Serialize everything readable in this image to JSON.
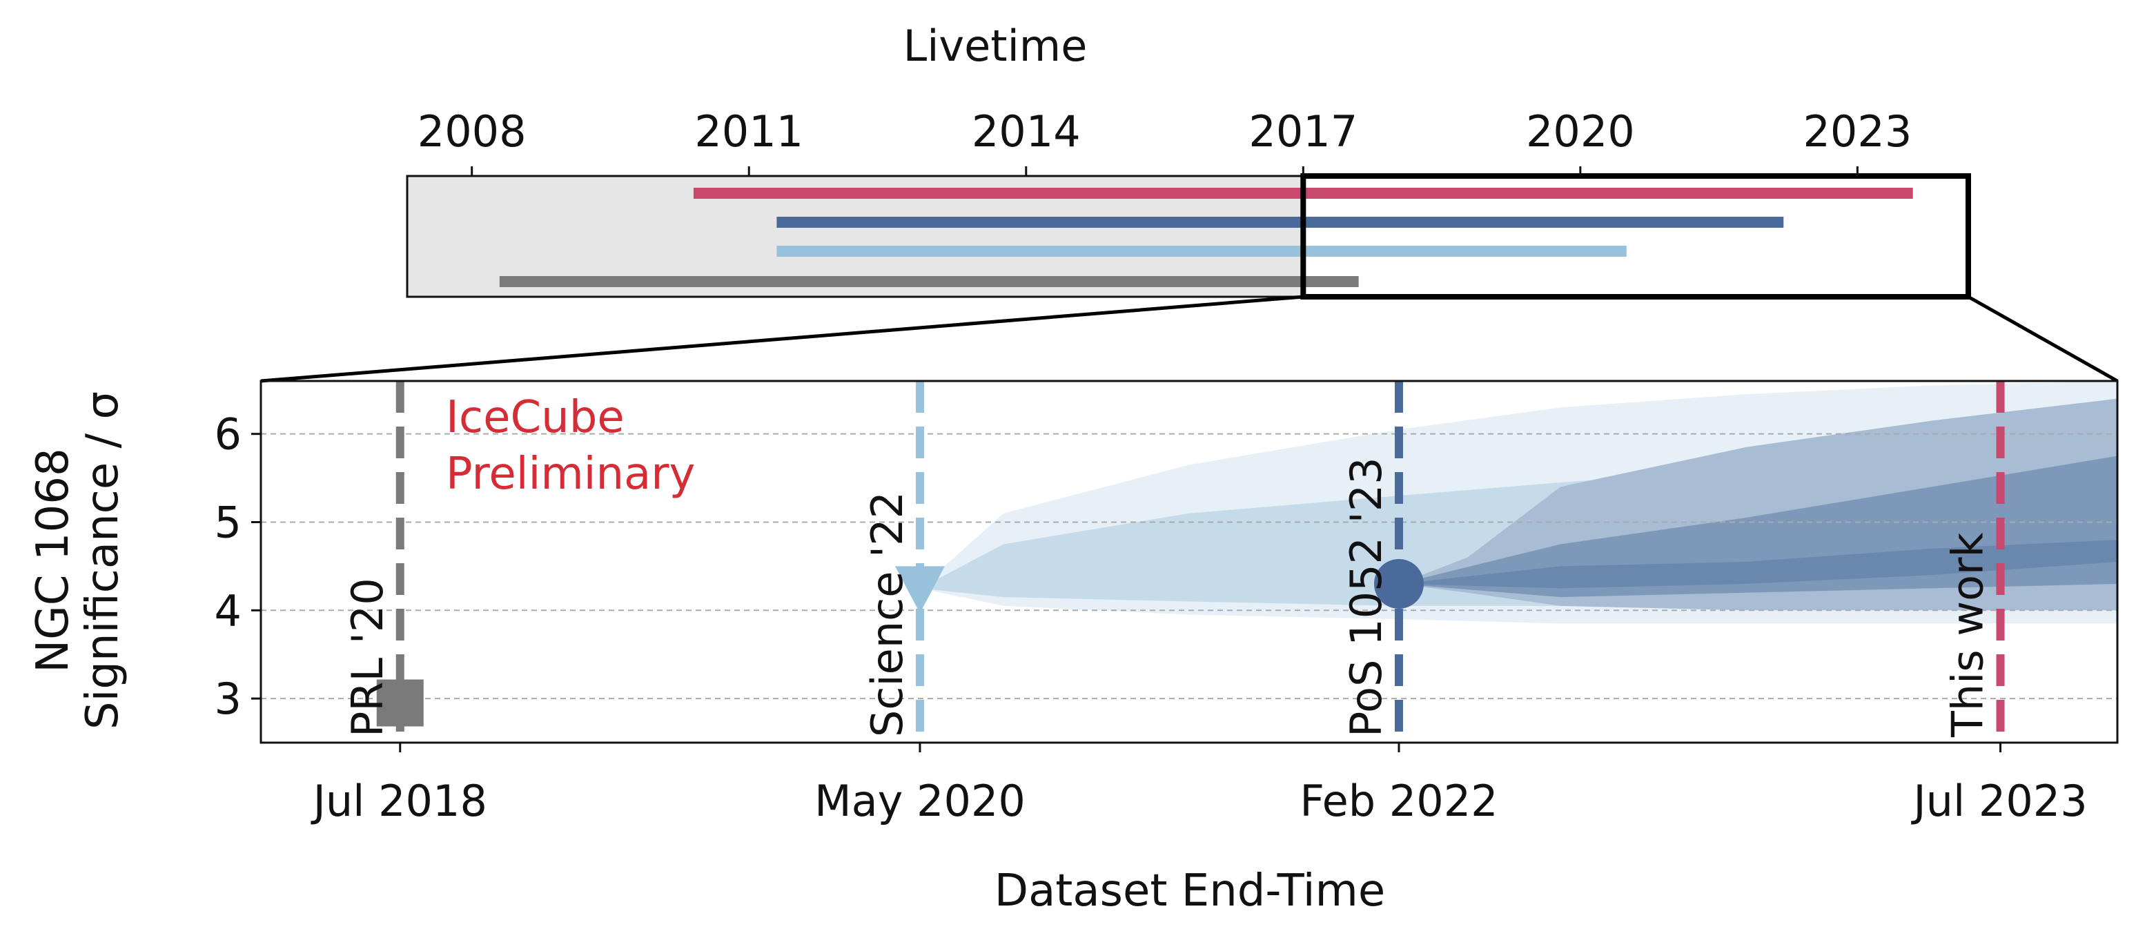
{
  "chart_data": [
    {
      "type": "line",
      "role": "livetime-overview",
      "title": "Livetime",
      "x_ticks": [
        "2008",
        "2011",
        "2014",
        "2017",
        "2020",
        "2023"
      ],
      "x_tick_values": [
        2008,
        2011,
        2014,
        2017,
        2020,
        2023
      ],
      "xlim": [
        2007.3,
        2024.2
      ],
      "series": [
        {
          "start": 2010.4,
          "end": 2023.6,
          "color": "#c8486e"
        },
        {
          "start": 2011.3,
          "end": 2022.2,
          "color": "#4a6a9b"
        },
        {
          "start": 2011.3,
          "end": 2020.5,
          "color": "#98c1db"
        },
        {
          "start": 2008.3,
          "end": 2017.6,
          "color": "#7a7a7a"
        }
      ],
      "shaded_range": [
        2007.3,
        2017.0
      ],
      "zoom_range": [
        2017.0,
        2024.2
      ]
    },
    {
      "type": "area",
      "role": "significance-vs-end-time",
      "xlabel": "Dataset End-Time",
      "ylabel_line1": "NGC 1068",
      "ylabel_line2": "Significance / σ",
      "ylim": [
        2.5,
        6.6
      ],
      "y_ticks": [
        3,
        4,
        5,
        6
      ],
      "grid": true,
      "xlim": [
        0,
        100
      ],
      "x_ticks": [
        {
          "label": "Jul 2018",
          "x": 7.5
        },
        {
          "label": "May 2020",
          "x": 35.5
        },
        {
          "label": "Feb 2022",
          "x": 61.3
        },
        {
          "label": "Jul 2023",
          "x": 93.7
        }
      ],
      "annotation": {
        "line1": "IceCube",
        "line2": "Preliminary",
        "color": "#d62c35"
      },
      "markers": [
        {
          "label": "PRL '20",
          "x": 7.5,
          "y": 2.95,
          "shape": "square",
          "color": "#7a7a7a"
        },
        {
          "label": "Science '22",
          "x": 35.5,
          "y": 4.25,
          "shape": "triangle-down",
          "color": "#98c1db"
        },
        {
          "label": "PoS 1052 '23",
          "x": 61.3,
          "y": 4.3,
          "shape": "circle",
          "color": "#4a6a9b"
        },
        {
          "label": "This work",
          "x": 93.7,
          "shape": "none",
          "color": "#c8486e"
        }
      ],
      "bands": [
        {
          "color": "#e8f0f7",
          "x": [
            35.5,
            40,
            50,
            61.3,
            70,
            80,
            90,
            100
          ],
          "upper": [
            4.25,
            5.1,
            5.65,
            6.05,
            6.3,
            6.45,
            6.55,
            6.6
          ],
          "lower": [
            4.25,
            4.05,
            3.95,
            3.9,
            3.85,
            3.85,
            3.85,
            3.85
          ]
        },
        {
          "color": "#c5dbea",
          "x": [
            35.5,
            40,
            50,
            61.3,
            70,
            80,
            90,
            100
          ],
          "upper": [
            4.25,
            4.75,
            5.1,
            5.3,
            5.45,
            5.6,
            5.7,
            5.8
          ],
          "lower": [
            4.25,
            4.15,
            4.1,
            4.05,
            4.05,
            4.05,
            4.05,
            4.05
          ]
        },
        {
          "color": "#a8bdd3",
          "x": [
            61.3,
            65,
            70,
            80,
            90,
            100
          ],
          "upper": [
            4.3,
            4.6,
            5.4,
            5.85,
            6.15,
            6.4
          ],
          "lower": [
            4.3,
            4.2,
            4.05,
            4.0,
            4.0,
            4.0
          ]
        },
        {
          "color": "#7e98b9",
          "x": [
            61.3,
            70,
            80,
            90,
            100
          ],
          "upper": [
            4.3,
            4.75,
            5.05,
            5.4,
            5.75
          ],
          "lower": [
            4.3,
            4.15,
            4.2,
            4.25,
            4.3
          ]
        },
        {
          "color": "#6a88ae",
          "x": [
            61.3,
            70,
            80,
            90,
            100
          ],
          "upper": [
            4.3,
            4.5,
            4.55,
            4.7,
            4.8
          ],
          "lower": [
            4.3,
            4.25,
            4.3,
            4.4,
            4.55
          ]
        }
      ]
    }
  ]
}
